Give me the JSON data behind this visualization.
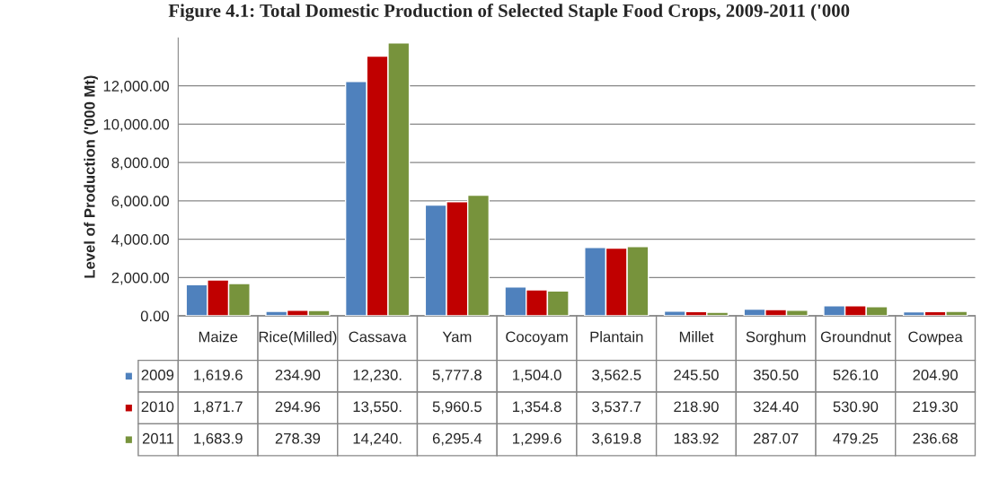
{
  "chart_data": {
    "type": "bar",
    "title": "Figure 4.1: Total Domestic Production of Selected Staple Food Crops, 2009-2011 ('000",
    "ylabel": "Level of Production ('000 Mt)",
    "categories": [
      "Maize",
      "Rice(Milled)",
      "Cassava",
      "Yam",
      "Cocoyam",
      "Plantain",
      "Millet",
      "Sorghum",
      "Groundnut",
      "Cowpea"
    ],
    "series": [
      {
        "name": "2009",
        "color": "#4f81bd",
        "values": [
          1619.6,
          234.9,
          12230,
          5777.8,
          1504.0,
          3562.5,
          245.5,
          350.5,
          526.1,
          204.9
        ],
        "value_labels": [
          "1,619.6",
          "234.90",
          "12,230.",
          "5,777.8",
          "1,504.0",
          "3,562.5",
          "245.50",
          "350.50",
          "526.10",
          "204.90"
        ]
      },
      {
        "name": "2010",
        "color": "#c00000",
        "values": [
          1871.7,
          294.96,
          13550,
          5960.5,
          1354.8,
          3537.7,
          218.9,
          324.4,
          530.9,
          219.3
        ],
        "value_labels": [
          "1,871.7",
          "294.96",
          "13,550.",
          "5,960.5",
          "1,354.8",
          "3,537.7",
          "218.90",
          "324.40",
          "530.90",
          "219.30"
        ]
      },
      {
        "name": "2011",
        "color": "#77933c",
        "values": [
          1683.9,
          278.39,
          14240,
          6295.4,
          1299.6,
          3619.8,
          183.92,
          287.07,
          479.25,
          236.68
        ],
        "value_labels": [
          "1,683.9",
          "278.39",
          "14,240.",
          "6,295.4",
          "1,299.6",
          "3,619.8",
          "183.92",
          "287.07",
          "479.25",
          "236.68"
        ]
      }
    ],
    "ylim": [
      0,
      14500
    ],
    "yticks": [
      {
        "value": 0,
        "label": "0.00"
      },
      {
        "value": 2000,
        "label": "2,000.00"
      },
      {
        "value": 4000,
        "label": "4,000.00"
      },
      {
        "value": 6000,
        "label": "6,000.00"
      },
      {
        "value": 8000,
        "label": "8,000.00"
      },
      {
        "value": 10000,
        "label": "10,000.00"
      },
      {
        "value": 12000,
        "label": "12,000.00"
      }
    ],
    "grid": "y",
    "legend": "left"
  }
}
